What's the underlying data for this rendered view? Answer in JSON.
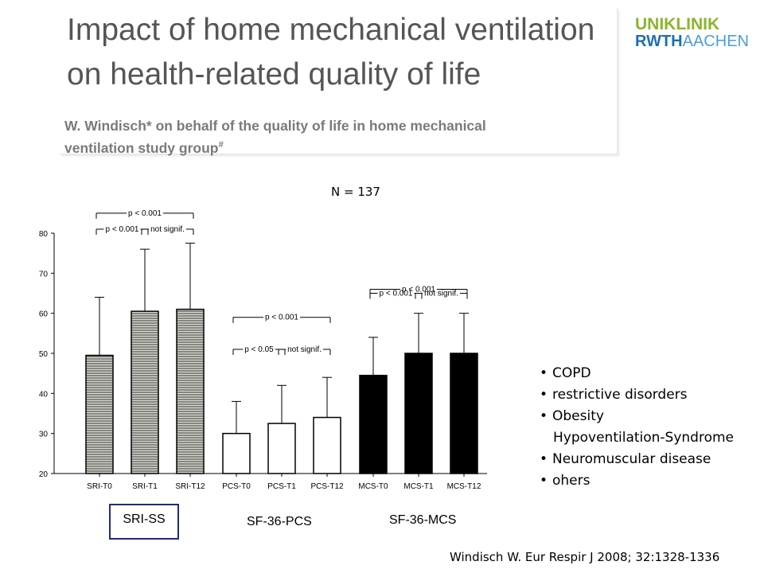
{
  "header": {
    "title_line1": "Impact of home mechanical ventilation",
    "title_line2": "on health-related quality of life",
    "authors_line1": "W. Windisch* on behalf of the quality of life in home mechanical",
    "authors_line2": "ventilation study group",
    "authors_mark": "#"
  },
  "logo": {
    "top": "UNIKLINIK",
    "bottom_bold": "RWTH",
    "bottom_light": "AACHEN"
  },
  "sample_size": "N = 137",
  "group_labels": [
    "SRI-SS",
    "SF-36-PCS",
    "SF-36-MCS"
  ],
  "bullets": [
    {
      "line1": "COPD"
    },
    {
      "line1": "restrictive disorders"
    },
    {
      "line1": "Obesity",
      "line2": "Hypoventilation-Syndrome"
    },
    {
      "line1": "Neuromuscular disease"
    },
    {
      "line1": "ohers"
    }
  ],
  "citation": "Windisch W. Eur Respir J 2008; 32:1328-1336",
  "chart_data": {
    "type": "bar",
    "categories": [
      "SRI-T0",
      "SRI-T1",
      "SRI-T12",
      "PCS-T0",
      "PCS-T1",
      "PCS-T12",
      "MCS-T0",
      "MCS-T1",
      "MCS-T12"
    ],
    "values": [
      49.5,
      60.5,
      61,
      30,
      32.5,
      34,
      44.5,
      50,
      50
    ],
    "error_upper": [
      64,
      76,
      77.5,
      38,
      42,
      44,
      54,
      60,
      60
    ],
    "ylim": [
      20,
      80
    ],
    "yticks": [
      20,
      30,
      40,
      50,
      60,
      70,
      80
    ],
    "bar_styles": [
      "hatched",
      "hatched",
      "hatched",
      "white",
      "white",
      "white",
      "black",
      "black",
      "black"
    ],
    "colors": {
      "hatch_fill": "#d8d8d0",
      "hatch_line": "#333333",
      "solid": "#000000",
      "open": "#ffffff"
    },
    "annotations": [
      {
        "text": "p < 0.001",
        "from": 0,
        "to": 2,
        "y": 85
      },
      {
        "text": "p < 0.001",
        "from": 0,
        "to": 1,
        "y": 81
      },
      {
        "text": "not signif.",
        "from": 1,
        "to": 2,
        "y": 81
      },
      {
        "text": "p < 0.001",
        "from": 3,
        "to": 5,
        "y": 59
      },
      {
        "text": "p < 0.05",
        "from": 3,
        "to": 4,
        "y": 51
      },
      {
        "text": "not signif.",
        "from": 4,
        "to": 5,
        "y": 51
      },
      {
        "text": "p < 0.001",
        "from": 6,
        "to": 8,
        "y": 66
      },
      {
        "text": "p < 0.001",
        "from": 6,
        "to": 7,
        "y": 65
      },
      {
        "text": "not signif.",
        "from": 7,
        "to": 8,
        "y": 65
      }
    ]
  }
}
